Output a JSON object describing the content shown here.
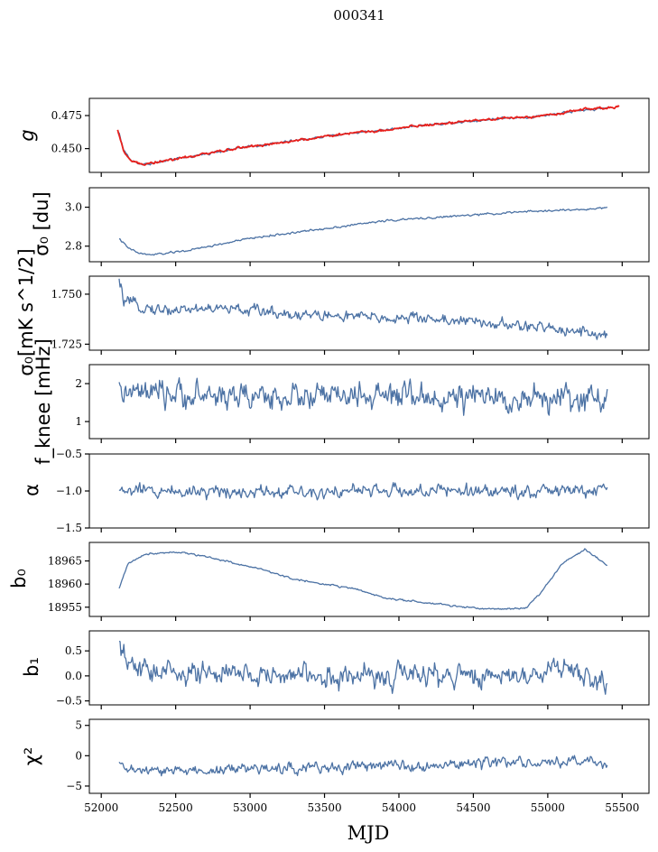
{
  "figure": {
    "title": "000341"
  },
  "chart_data": [
    {
      "id": "g",
      "type": "line",
      "ylabel": "g",
      "ylim": [
        0.432,
        0.488
      ],
      "yticks": [
        0.45,
        0.475
      ],
      "ytick_labels": [
        "0.450",
        "0.475"
      ],
      "noise": 0.0007,
      "series": [
        {
          "color": "#4c72a4",
          "x": [
            52120,
            52150,
            52200,
            52280,
            52350,
            52500,
            52700,
            52900,
            53100,
            53300,
            53500,
            53700,
            53900,
            54100,
            54300,
            54500,
            54700,
            54900,
            55100,
            55250,
            55400
          ],
          "y": [
            0.462,
            0.449,
            0.441,
            0.438,
            0.439,
            0.442,
            0.446,
            0.45,
            0.453,
            0.456,
            0.459,
            0.462,
            0.464,
            0.467,
            0.469,
            0.471,
            0.473,
            0.474,
            0.477,
            0.479,
            0.481
          ]
        },
        {
          "color": "#e8201c",
          "x": [
            52110,
            52130,
            52150,
            52200,
            52280,
            52350,
            52500,
            52700,
            52900,
            53100,
            53300,
            53500,
            53700,
            53900,
            54100,
            54300,
            54500,
            54700,
            54900,
            55100,
            55250,
            55480
          ],
          "y": [
            0.464,
            0.456,
            0.448,
            0.441,
            0.438,
            0.439,
            0.442,
            0.446,
            0.45,
            0.453,
            0.456,
            0.459,
            0.462,
            0.464,
            0.467,
            0.469,
            0.471,
            0.473,
            0.474,
            0.477,
            0.48,
            0.481
          ]
        }
      ]
    },
    {
      "id": "sigma0",
      "type": "line",
      "ylabel": "σ₀ [du]",
      "ylim": [
        2.72,
        3.1
      ],
      "yticks": [
        2.8,
        3.0
      ],
      "ytick_labels": [
        "2.8",
        "3.0"
      ],
      "noise": 0.004,
      "series": [
        {
          "color": "#4c72a4",
          "x": [
            52120,
            52180,
            52250,
            52320,
            52400,
            52600,
            52800,
            53000,
            53300,
            53600,
            53900,
            54200,
            54500,
            54800,
            55100,
            55300,
            55400
          ],
          "y": [
            2.84,
            2.79,
            2.765,
            2.755,
            2.76,
            2.78,
            2.81,
            2.84,
            2.87,
            2.9,
            2.93,
            2.945,
            2.96,
            2.975,
            2.985,
            2.99,
            3.0
          ]
        }
      ]
    },
    {
      "id": "sigma0_wn",
      "type": "line",
      "ylabel": "σ₀[mK s^1/2]",
      "ylim": [
        1.722,
        1.759
      ],
      "yticks": [
        1.725,
        1.75
      ],
      "ytick_labels": [
        "1.725",
        "1.750"
      ],
      "noise": 0.0022,
      "series": [
        {
          "color": "#4c72a4",
          "x": [
            52120,
            52150,
            52200,
            52400,
            52700,
            53000,
            53300,
            53600,
            53900,
            54200,
            54500,
            54800,
            55000,
            55200,
            55400
          ],
          "y": [
            1.756,
            1.747,
            1.745,
            1.742,
            1.743,
            1.742,
            1.74,
            1.739,
            1.738,
            1.738,
            1.736,
            1.734,
            1.733,
            1.732,
            1.729
          ]
        }
      ]
    },
    {
      "id": "fknee",
      "type": "line",
      "ylabel": "f_knee [mHz]",
      "ylim": [
        0.55,
        2.5
      ],
      "yticks": [
        1,
        2
      ],
      "ytick_labels": [
        "1",
        "2"
      ],
      "noise": 0.27,
      "series": [
        {
          "color": "#4c72a4",
          "x": [
            52120,
            52300,
            52800,
            53300,
            53800,
            54300,
            54800,
            55400
          ],
          "y": [
            1.75,
            1.72,
            1.68,
            1.66,
            1.65,
            1.62,
            1.6,
            1.6
          ]
        }
      ]
    },
    {
      "id": "alpha",
      "type": "line",
      "ylabel": "α",
      "ylim": [
        -1.5,
        -0.5
      ],
      "yticks": [
        -1.5,
        -1.0,
        -0.5
      ],
      "ytick_labels": [
        "−1.5",
        "−1.0",
        "−0.5"
      ],
      "noise": 0.07,
      "series": [
        {
          "color": "#4c72a4",
          "x": [
            52120,
            55400
          ],
          "y": [
            -1.0,
            -1.0
          ]
        }
      ]
    },
    {
      "id": "b0",
      "type": "line",
      "ylabel": "b₀",
      "ylim": [
        18953,
        18969
      ],
      "yticks": [
        18955,
        18960,
        18965
      ],
      "ytick_labels": [
        "18955",
        "18960",
        "18965"
      ],
      "noise": 0.15,
      "series": [
        {
          "color": "#4c72a4",
          "x": [
            52120,
            52180,
            52300,
            52500,
            52700,
            52900,
            53100,
            53300,
            53500,
            53700,
            53900,
            54100,
            54300,
            54500,
            54700,
            54850,
            54950,
            55100,
            55250,
            55400
          ],
          "y": [
            18959,
            18964.5,
            18966.5,
            18967,
            18966,
            18964.5,
            18963,
            18961,
            18960,
            18959,
            18957,
            18956.2,
            18955.5,
            18954.8,
            18954.6,
            18954.8,
            18958,
            18964.5,
            18967.5,
            18964
          ]
        }
      ]
    },
    {
      "id": "b1",
      "type": "line",
      "ylabel": "b₁",
      "ylim": [
        -0.58,
        0.9
      ],
      "yticks": [
        -0.5,
        0.0,
        0.5
      ],
      "ytick_labels": [
        "−0.5",
        "0.0",
        "0.5"
      ],
      "noise": 0.18,
      "series": [
        {
          "color": "#4c72a4",
          "x": [
            52120,
            52160,
            52250,
            52500,
            53000,
            53500,
            54000,
            54500,
            54900,
            55100,
            55300,
            55400
          ],
          "y": [
            0.55,
            0.3,
            0.12,
            0.06,
            0.02,
            0.0,
            0.0,
            0.0,
            0.05,
            0.15,
            0.0,
            -0.15
          ]
        }
      ]
    },
    {
      "id": "chi2",
      "type": "line",
      "ylabel": "χ²",
      "ylim": [
        -6.2,
        6.0
      ],
      "yticks": [
        -5,
        0,
        5
      ],
      "ytick_labels": [
        "−5",
        "0",
        "5"
      ],
      "noise": 0.7,
      "series": [
        {
          "color": "#4c72a4",
          "x": [
            52120,
            52300,
            52700,
            53100,
            53500,
            54000,
            54500,
            55000,
            55400
          ],
          "y": [
            -1.8,
            -2.6,
            -2.4,
            -2.1,
            -1.9,
            -1.6,
            -1.3,
            -1.1,
            -1.0
          ]
        }
      ]
    }
  ],
  "x_axis": {
    "label": "MJD",
    "xlim": [
      51920,
      55680
    ],
    "ticks": [
      52000,
      52500,
      53000,
      53500,
      54000,
      54500,
      55000,
      55500
    ],
    "tick_labels": [
      "52000",
      "52500",
      "53000",
      "53500",
      "54000",
      "54500",
      "55000",
      "55500"
    ]
  }
}
